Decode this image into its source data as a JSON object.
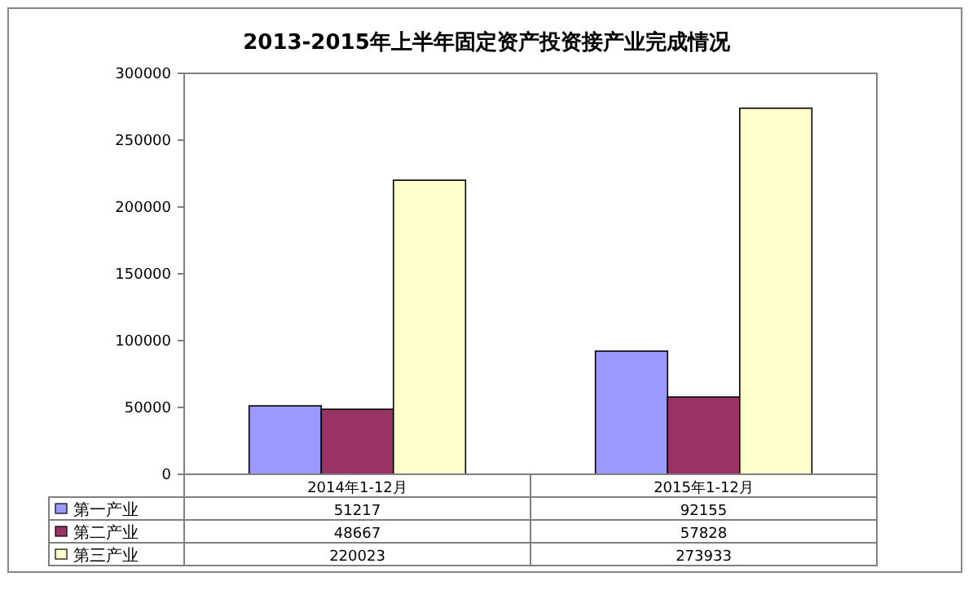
{
  "chart_data": {
    "type": "bar",
    "title": "2013-2015年上半年固定资产投资接产业完成情况",
    "categories": [
      "2014年1-12月",
      "2015年1-12月"
    ],
    "series": [
      {
        "name": "第一产业",
        "color": "#9999ff",
        "values": [
          51217,
          92155
        ]
      },
      {
        "name": "第二产业",
        "color": "#993366",
        "values": [
          48667,
          57828
        ]
      },
      {
        "name": "第三产业",
        "color": "#ffffcc",
        "values": [
          220023,
          273933
        ]
      }
    ],
    "ylim": [
      0,
      300000
    ],
    "yticks": [
      0,
      50000,
      100000,
      150000,
      200000,
      250000,
      300000
    ],
    "grid": false,
    "legend": "bottom",
    "data_labels": true
  }
}
